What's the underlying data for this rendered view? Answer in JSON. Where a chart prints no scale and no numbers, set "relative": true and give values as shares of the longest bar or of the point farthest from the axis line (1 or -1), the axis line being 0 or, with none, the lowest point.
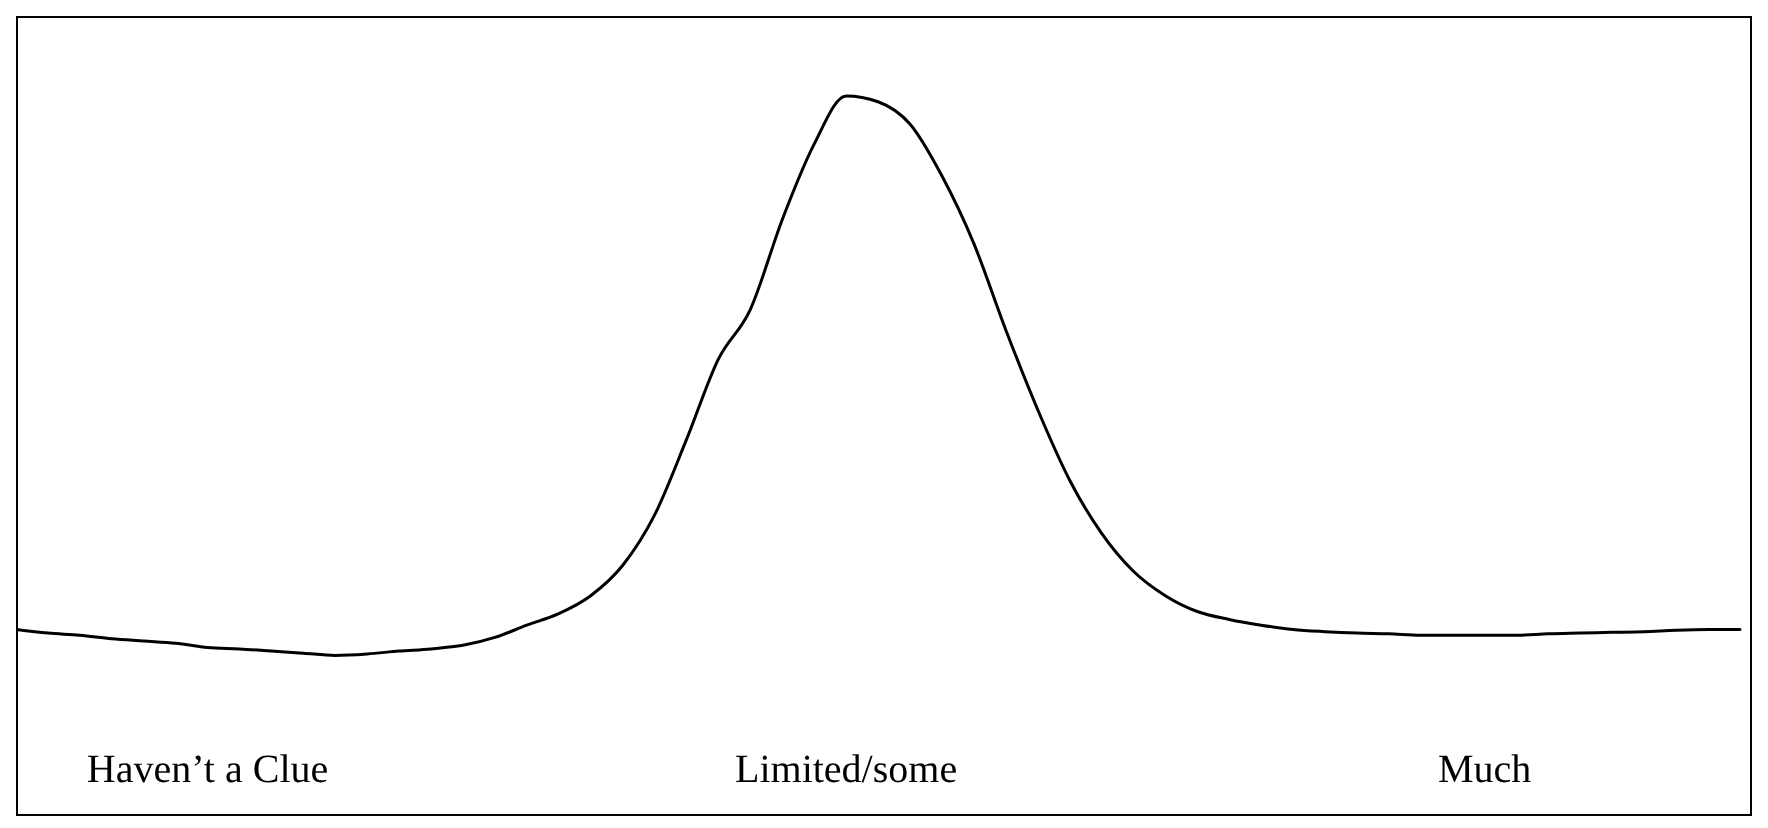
{
  "chart_data": {
    "type": "line",
    "relative": true,
    "color": "#000000",
    "categories": [
      null,
      null,
      null,
      null,
      null,
      null,
      "Haven’t a Clue",
      null,
      null,
      null,
      null,
      null,
      null,
      null,
      null,
      null,
      null,
      null,
      null,
      null,
      null,
      null,
      null,
      null,
      null,
      null,
      "Limited/some",
      null,
      null,
      null,
      null,
      null,
      null,
      null,
      null,
      null,
      null,
      null,
      null,
      null,
      null,
      null,
      null,
      null,
      null,
      null,
      "Much",
      null,
      null,
      null,
      null,
      null,
      null,
      null,
      null
    ],
    "values": [
      0.258,
      0.253,
      0.25,
      0.245,
      0.242,
      0.239,
      0.233,
      0.231,
      0.228,
      0.225,
      0.222,
      0.224,
      0.228,
      0.231,
      0.236,
      0.247,
      0.264,
      0.28,
      0.305,
      0.347,
      0.417,
      0.522,
      0.634,
      0.703,
      0.828,
      0.933,
      1,
      0.992,
      0.961,
      0.889,
      0.795,
      0.675,
      0.564,
      0.466,
      0.392,
      0.339,
      0.305,
      0.283,
      0.272,
      0.264,
      0.258,
      0.255,
      0.253,
      0.252,
      0.25,
      0.25,
      0.25,
      0.25,
      0.252,
      0.253,
      0.254,
      0.255,
      0.257,
      0.258,
      0.258
    ]
  }
}
